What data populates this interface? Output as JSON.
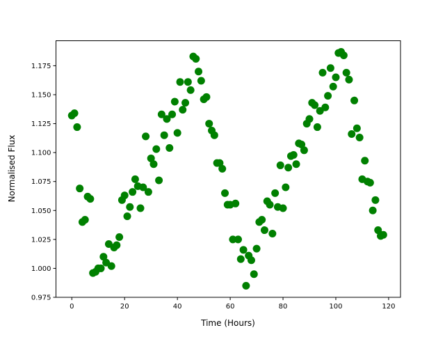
{
  "chart_data": {
    "type": "scatter",
    "title": "",
    "xlabel": "Time (Hours)",
    "ylabel": "Normalised Flux",
    "xlim": [
      -6,
      124.5
    ],
    "ylim": [
      0.975,
      1.1966
    ],
    "xticks": [
      0,
      20,
      40,
      60,
      80,
      100,
      120
    ],
    "xtick_labels": [
      "0",
      "20",
      "40",
      "60",
      "80",
      "100",
      "120"
    ],
    "yticks": [
      0.975,
      1.0,
      1.025,
      1.05,
      1.075,
      1.1,
      1.125,
      1.15,
      1.175
    ],
    "ytick_labels": [
      "0.975",
      "1.000",
      "1.025",
      "1.050",
      "1.075",
      "1.100",
      "1.125",
      "1.150",
      "1.175"
    ],
    "grid": false,
    "marker_color": "#008000",
    "series": [
      {
        "x": [
          0,
          1,
          2,
          3,
          4,
          5,
          6,
          7,
          8,
          9,
          10,
          11,
          12,
          13,
          14,
          15,
          16,
          17,
          18,
          19,
          20,
          21,
          22,
          23,
          24,
          25,
          26,
          27,
          28,
          29,
          30,
          31,
          32,
          33,
          34,
          35,
          36,
          37,
          38,
          39,
          40,
          41,
          42,
          43,
          44,
          45,
          46,
          47,
          48,
          49,
          50,
          51,
          52,
          53,
          54,
          55,
          56,
          57,
          58,
          59,
          60,
          61,
          62,
          63,
          64,
          65,
          66,
          67,
          68,
          69,
          70,
          71,
          72,
          73,
          74,
          75,
          76,
          77,
          78,
          79,
          80,
          81,
          82,
          83,
          84,
          85,
          86,
          87,
          88,
          89,
          90,
          91,
          92,
          93,
          94,
          95,
          96,
          97,
          98,
          99,
          100,
          101,
          102,
          103,
          104,
          105,
          106,
          107,
          108,
          109,
          110,
          111,
          112,
          113,
          114,
          115,
          116,
          117,
          118
        ],
        "y": [
          1.132,
          1.134,
          1.122,
          1.069,
          1.04,
          1.042,
          1.062,
          1.06,
          0.996,
          0.997,
          1.0,
          1.0,
          1.01,
          1.005,
          1.021,
          1.002,
          1.018,
          1.02,
          1.027,
          1.059,
          1.063,
          1.045,
          1.053,
          1.066,
          1.077,
          1.071,
          1.052,
          1.07,
          1.114,
          1.066,
          1.095,
          1.09,
          1.103,
          1.076,
          1.133,
          1.115,
          1.129,
          1.104,
          1.133,
          1.144,
          1.117,
          1.161,
          1.137,
          1.143,
          1.161,
          1.154,
          1.183,
          1.181,
          1.17,
          1.162,
          1.146,
          1.148,
          1.125,
          1.119,
          1.115,
          1.091,
          1.091,
          1.086,
          1.065,
          1.055,
          1.055,
          1.025,
          1.056,
          1.025,
          1.008,
          1.016,
          0.985,
          1.011,
          1.007,
          0.995,
          1.017,
          1.04,
          1.042,
          1.033,
          1.058,
          1.055,
          1.03,
          1.065,
          1.053,
          1.089,
          1.052,
          1.07,
          1.087,
          1.097,
          1.098,
          1.09,
          1.108,
          1.107,
          1.102,
          1.125,
          1.129,
          1.143,
          1.141,
          1.122,
          1.136,
          1.169,
          1.139,
          1.149,
          1.173,
          1.157,
          1.165,
          1.186,
          1.187,
          1.184,
          1.169,
          1.163,
          1.116,
          1.145,
          1.121,
          1.113,
          1.077,
          1.093,
          1.075,
          1.074,
          1.05,
          1.059,
          1.033,
          1.028,
          1.029
        ]
      }
    ]
  }
}
